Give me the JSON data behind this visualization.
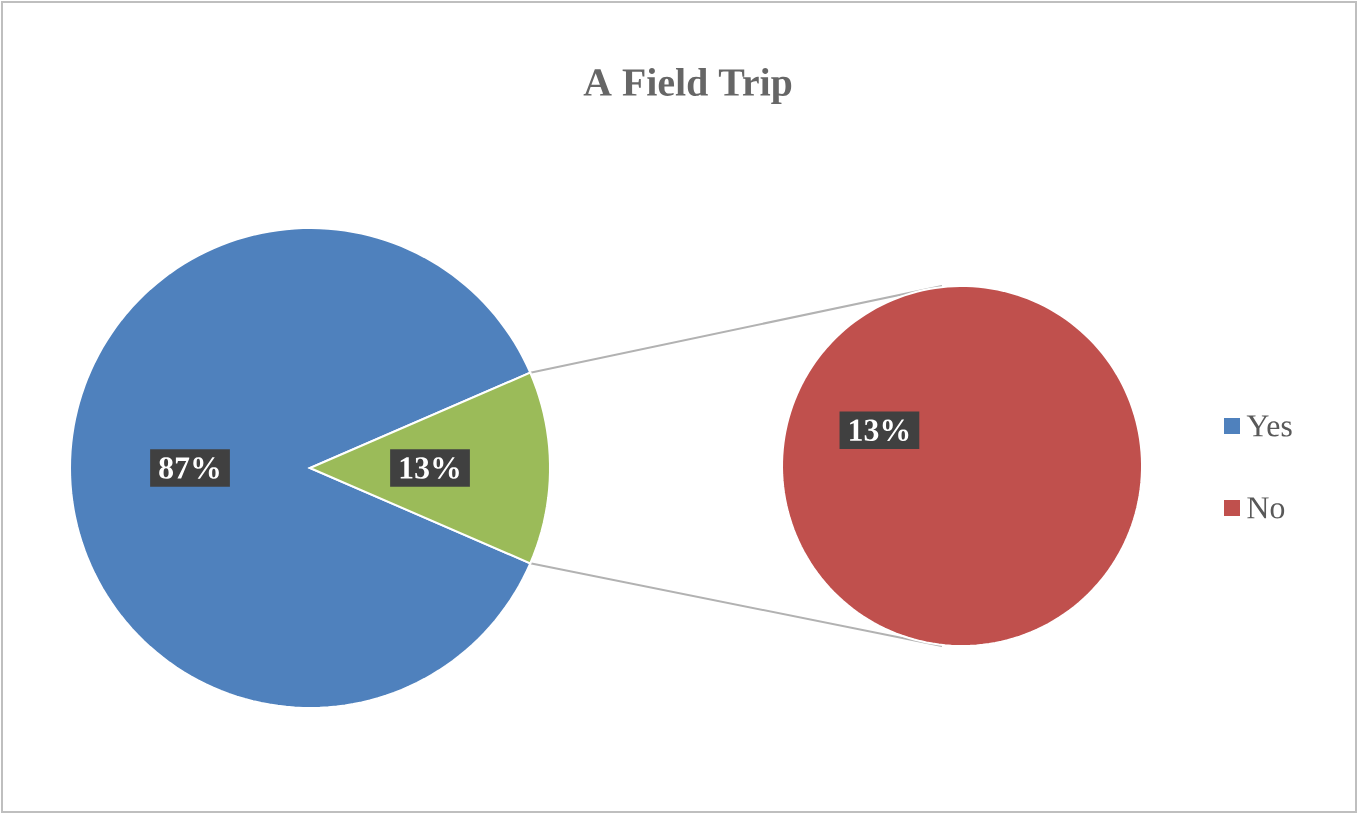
{
  "chart_data": [
    {
      "type": "pie",
      "title": "A Field Trip",
      "categories": [
        "Yes",
        null
      ],
      "values": [
        87,
        13
      ],
      "colors": [
        "#4f81bd",
        "#9bbb59"
      ],
      "value_labels": [
        "87%",
        "13%"
      ],
      "legend": "right"
    },
    {
      "type": "pie",
      "categories": [
        "No"
      ],
      "values": [
        13
      ],
      "colors": [
        "#c0504d"
      ],
      "value_labels": [
        "13%"
      ],
      "legend": "right"
    }
  ]
}
